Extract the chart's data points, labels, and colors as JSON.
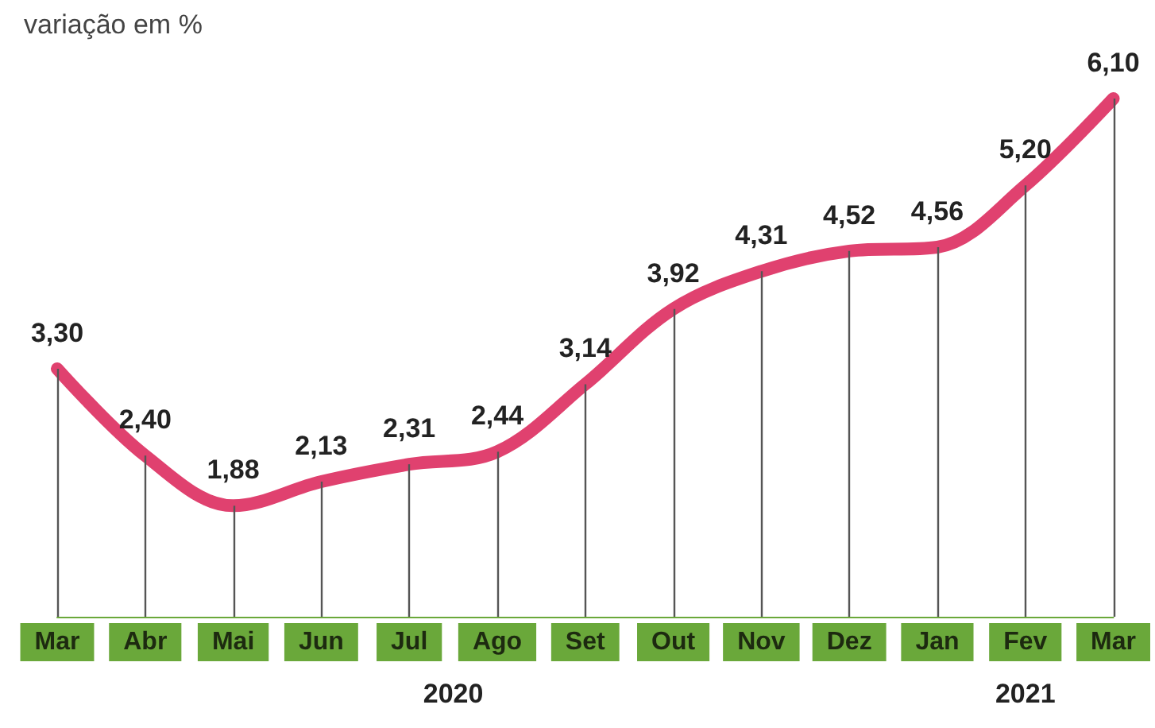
{
  "chart_data": {
    "type": "line",
    "title": "variação em %",
    "categories": [
      "Mar",
      "Abr",
      "Mai",
      "Jun",
      "Jul",
      "Ago",
      "Set",
      "Out",
      "Nov",
      "Dez",
      "Jan",
      "Fev",
      "Mar"
    ],
    "series": [
      {
        "color": "#e0416f",
        "values": [
          3.3,
          2.4,
          1.88,
          2.13,
          2.31,
          2.44,
          3.14,
          3.92,
          4.31,
          4.52,
          4.56,
          5.2,
          6.1
        ],
        "value_labels": [
          "3,30",
          "2,40",
          "1,88",
          "2,13",
          "2,31",
          "2,44",
          "3,14",
          "3,92",
          "4,31",
          "4,52",
          "4,56",
          "5,20",
          "6,10"
        ]
      }
    ],
    "annotations": [
      "2020",
      "2021"
    ],
    "marker": "none",
    "line_style": "solid",
    "grid": "x"
  }
}
